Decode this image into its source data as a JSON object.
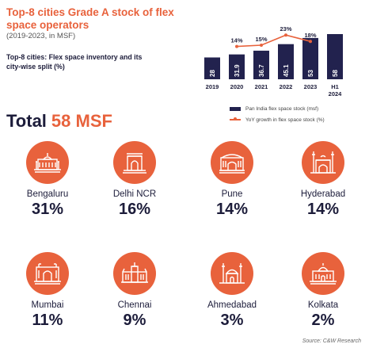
{
  "header": {
    "title": "Top-8 cities Grade A stock of flex space operators",
    "subtitle": "(2019-2023, in MSF)",
    "note": "Top-8 cities: Flex space inventory and its city-wise split (%)"
  },
  "total": {
    "label": "Total",
    "value": "58 MSF"
  },
  "chart_data": {
    "type": "bar",
    "categories": [
      "2019",
      "2020",
      "2021",
      "2022",
      "2023",
      "H1 2024"
    ],
    "series": [
      {
        "name": "Pan India flex space stock (msf)",
        "type": "bar",
        "values": [
          28,
          31.9,
          36.7,
          45.1,
          53,
          58
        ],
        "labels": [
          "28",
          "31.9",
          "36.7",
          "45.1",
          "53",
          "58"
        ],
        "color": "#22224e"
      },
      {
        "name": "YoY growth in flex space stock (%)",
        "type": "line",
        "values": [
          null,
          14,
          15,
          23,
          18,
          null
        ],
        "labels": [
          "",
          "14%",
          "15%",
          "23%",
          "18%",
          ""
        ],
        "color": "#e8623c"
      }
    ],
    "title": "",
    "xlabel": "",
    "ylabel": "",
    "legend_position": "bottom",
    "grid": false
  },
  "cities": [
    {
      "name": "Bengaluru",
      "share": "31%",
      "icon": "palace-icon"
    },
    {
      "name": "Delhi NCR",
      "share": "16%",
      "icon": "india-gate-icon"
    },
    {
      "name": "Pune",
      "share": "14%",
      "icon": "fort-gate-icon"
    },
    {
      "name": "Hyderabad",
      "share": "14%",
      "icon": "charminar-icon"
    },
    {
      "name": "Mumbai",
      "share": "11%",
      "icon": "gateway-icon"
    },
    {
      "name": "Chennai",
      "share": "9%",
      "icon": "central-station-icon"
    },
    {
      "name": "Ahmedabad",
      "share": "3%",
      "icon": "mosque-icon"
    },
    {
      "name": "Kolkata",
      "share": "2%",
      "icon": "memorial-icon"
    }
  ],
  "source": "Source: C&W Research",
  "colors": {
    "accent": "#e8623c",
    "navy": "#22224e",
    "text": "#1c1c3a"
  }
}
